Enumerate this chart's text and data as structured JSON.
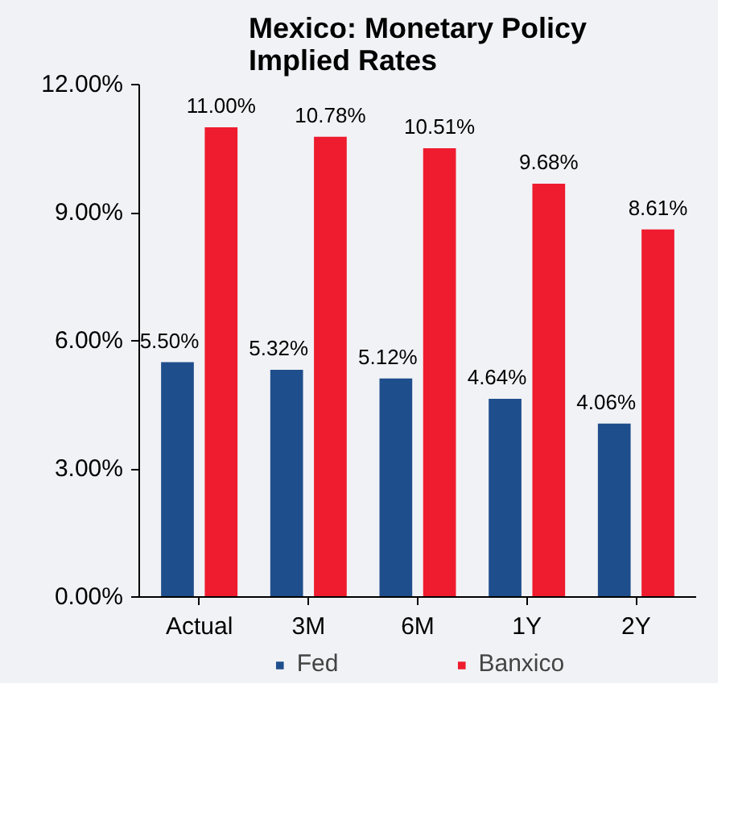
{
  "chart_data": {
    "type": "bar",
    "title": "Mexico: Monetary Policy Implied Rates",
    "categories": [
      "Actual",
      "3M",
      "6M",
      "1Y",
      "2Y"
    ],
    "series": [
      {
        "name": "Fed",
        "color": "#1f4e8c",
        "values": [
          5.5,
          5.32,
          5.12,
          4.64,
          4.06
        ],
        "value_labels": [
          "5.50%",
          "5.32%",
          "5.12%",
          "4.64%",
          "4.06%"
        ]
      },
      {
        "name": "Banxico",
        "color": "#ee1c2e",
        "values": [
          11.0,
          10.78,
          10.51,
          9.68,
          8.61
        ],
        "value_labels": [
          "11.00%",
          "10.78%",
          "10.51%",
          "9.68%",
          "8.61%"
        ]
      }
    ],
    "ylim": [
      0,
      12
    ],
    "yticks": [
      {
        "value": 0,
        "label": "0.00%"
      },
      {
        "value": 3,
        "label": "3.00%"
      },
      {
        "value": 6,
        "label": "6.00%"
      },
      {
        "value": 9,
        "label": "9.00%"
      },
      {
        "value": 12,
        "label": "12.00%"
      }
    ],
    "grid": false,
    "legend": "bottom"
  }
}
